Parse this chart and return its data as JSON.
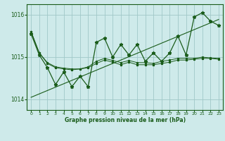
{
  "xlabel": "Graphe pression niveau de la mer (hPa)",
  "bg_color": "#ceeaea",
  "grid_color": "#a0c8c8",
  "line_color": "#1a5c1a",
  "ylim": [
    1013.75,
    1016.25
  ],
  "xlim": [
    -0.5,
    23.5
  ],
  "yticks": [
    1014,
    1015,
    1016
  ],
  "xticks": [
    0,
    1,
    2,
    3,
    4,
    5,
    6,
    7,
    8,
    9,
    10,
    11,
    12,
    13,
    14,
    15,
    16,
    17,
    18,
    19,
    20,
    21,
    22,
    23
  ],
  "line_zigzag": [
    1015.55,
    1015.05,
    1014.75,
    1014.35,
    1014.65,
    1014.3,
    1014.55,
    1014.3,
    1015.35,
    1015.45,
    1015.0,
    1015.3,
    1015.05,
    1015.3,
    1014.9,
    1015.1,
    1014.9,
    1015.1,
    1015.5,
    1015.05,
    1015.95,
    1016.05,
    1015.85,
    1015.75
  ],
  "line_trend_up": [
    1014.05,
    1014.13,
    1014.21,
    1014.29,
    1014.37,
    1014.45,
    1014.53,
    1014.61,
    1014.69,
    1014.77,
    1014.85,
    1014.93,
    1015.01,
    1015.09,
    1015.17,
    1015.25,
    1015.33,
    1015.41,
    1015.49,
    1015.57,
    1015.65,
    1015.73,
    1015.81,
    1015.89
  ],
  "line_flat1": [
    1015.6,
    1015.1,
    1014.85,
    1014.75,
    1014.72,
    1014.7,
    1014.72,
    1014.75,
    1014.85,
    1014.93,
    1014.88,
    1014.82,
    1014.88,
    1014.82,
    1014.82,
    1014.82,
    1014.85,
    1014.88,
    1014.93,
    1014.93,
    1014.95,
    1014.97,
    1014.97,
    1014.95
  ],
  "line_flat2": [
    1015.6,
    1015.1,
    1014.87,
    1014.77,
    1014.74,
    1014.72,
    1014.72,
    1014.77,
    1014.9,
    1014.97,
    1014.92,
    1014.87,
    1014.92,
    1014.87,
    1014.87,
    1014.85,
    1014.9,
    1014.93,
    1014.97,
    1014.97,
    1014.97,
    1015.0,
    1014.98,
    1014.97
  ]
}
